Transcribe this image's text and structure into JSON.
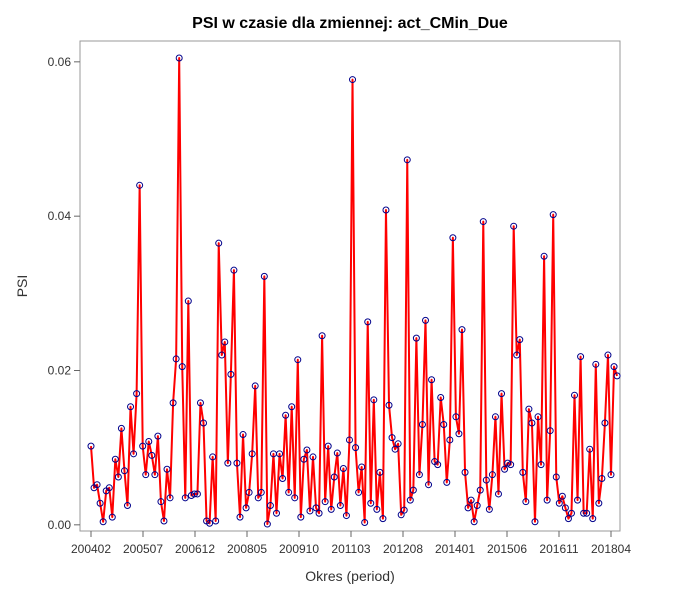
{
  "chart_data": {
    "type": "line",
    "title": "PSI w czasie dla zmiennej: act_CMin_Due",
    "xlabel": "Okres (period)",
    "ylabel": "PSI",
    "x_tick_labels": [
      "200402",
      "200507",
      "200612",
      "200805",
      "200910",
      "201103",
      "201208",
      "201401",
      "201506",
      "201611",
      "201804"
    ],
    "x_range": [
      0,
      171
    ],
    "y_ticks": [
      0.0,
      0.02,
      0.04,
      0.06
    ],
    "y_tick_labels": [
      "0.00",
      "0.02",
      "0.04",
      "0.06"
    ],
    "ylim": [
      -0.0008,
      0.0627
    ],
    "grid": false,
    "legend": "none",
    "colors": {
      "line": "#ff0000",
      "marker": "#00008b"
    },
    "series": [
      {
        "values": [
          0.0102,
          0.0048,
          0.0052,
          0.0028,
          0.0004,
          0.0044,
          0.0048,
          0.001,
          0.0085,
          0.0062,
          0.0125,
          0.007,
          0.0025,
          0.0153,
          0.0092,
          0.017,
          0.044,
          0.0102,
          0.0065,
          0.0108,
          0.009,
          0.0065,
          0.0115,
          0.003,
          0.0005,
          0.0072,
          0.0035,
          0.0158,
          0.0215,
          0.0605,
          0.0205,
          0.0035,
          0.029,
          0.0038,
          0.004,
          0.004,
          0.0158,
          0.0132,
          0.0005,
          0.0002,
          0.0088,
          0.0005,
          0.0365,
          0.022,
          0.0237,
          0.008,
          0.0195,
          0.033,
          0.008,
          0.001,
          0.0117,
          0.0022,
          0.0042,
          0.0092,
          0.018,
          0.0035,
          0.0042,
          0.0322,
          0.0001,
          0.0025,
          0.0092,
          0.0015,
          0.0092,
          0.006,
          0.0142,
          0.0042,
          0.0153,
          0.0035,
          0.0214,
          0.001,
          0.0085,
          0.0097,
          0.0018,
          0.0088,
          0.0022,
          0.0015,
          0.0245,
          0.003,
          0.0102,
          0.002,
          0.0062,
          0.0093,
          0.0025,
          0.0073,
          0.0012,
          0.011,
          0.0577,
          0.01,
          0.0042,
          0.0075,
          0.0003,
          0.0263,
          0.0028,
          0.0162,
          0.002,
          0.0068,
          0.0008,
          0.0408,
          0.0155,
          0.0113,
          0.0098,
          0.0105,
          0.0013,
          0.0019,
          0.0473,
          0.0032,
          0.0045,
          0.0242,
          0.0065,
          0.013,
          0.0265,
          0.0052,
          0.0188,
          0.0082,
          0.0078,
          0.0165,
          0.013,
          0.0055,
          0.011,
          0.0372,
          0.014,
          0.0118,
          0.0253,
          0.0068,
          0.0022,
          0.0032,
          0.0004,
          0.0025,
          0.0045,
          0.0393,
          0.0058,
          0.002,
          0.0065,
          0.014,
          0.004,
          0.017,
          0.0072,
          0.008,
          0.0078,
          0.0387,
          0.022,
          0.024,
          0.0068,
          0.003,
          0.015,
          0.0132,
          0.0004,
          0.014,
          0.0078,
          0.0348,
          0.0032,
          0.0122,
          0.0402,
          0.0062,
          0.0028,
          0.0037,
          0.0022,
          0.0008,
          0.0015,
          0.0168,
          0.0032,
          0.0218,
          0.0015,
          0.0015,
          0.0098,
          0.0008,
          0.0208,
          0.0028,
          0.006,
          0.0132,
          0.022,
          0.0065,
          0.0205,
          0.0193
        ]
      }
    ]
  }
}
